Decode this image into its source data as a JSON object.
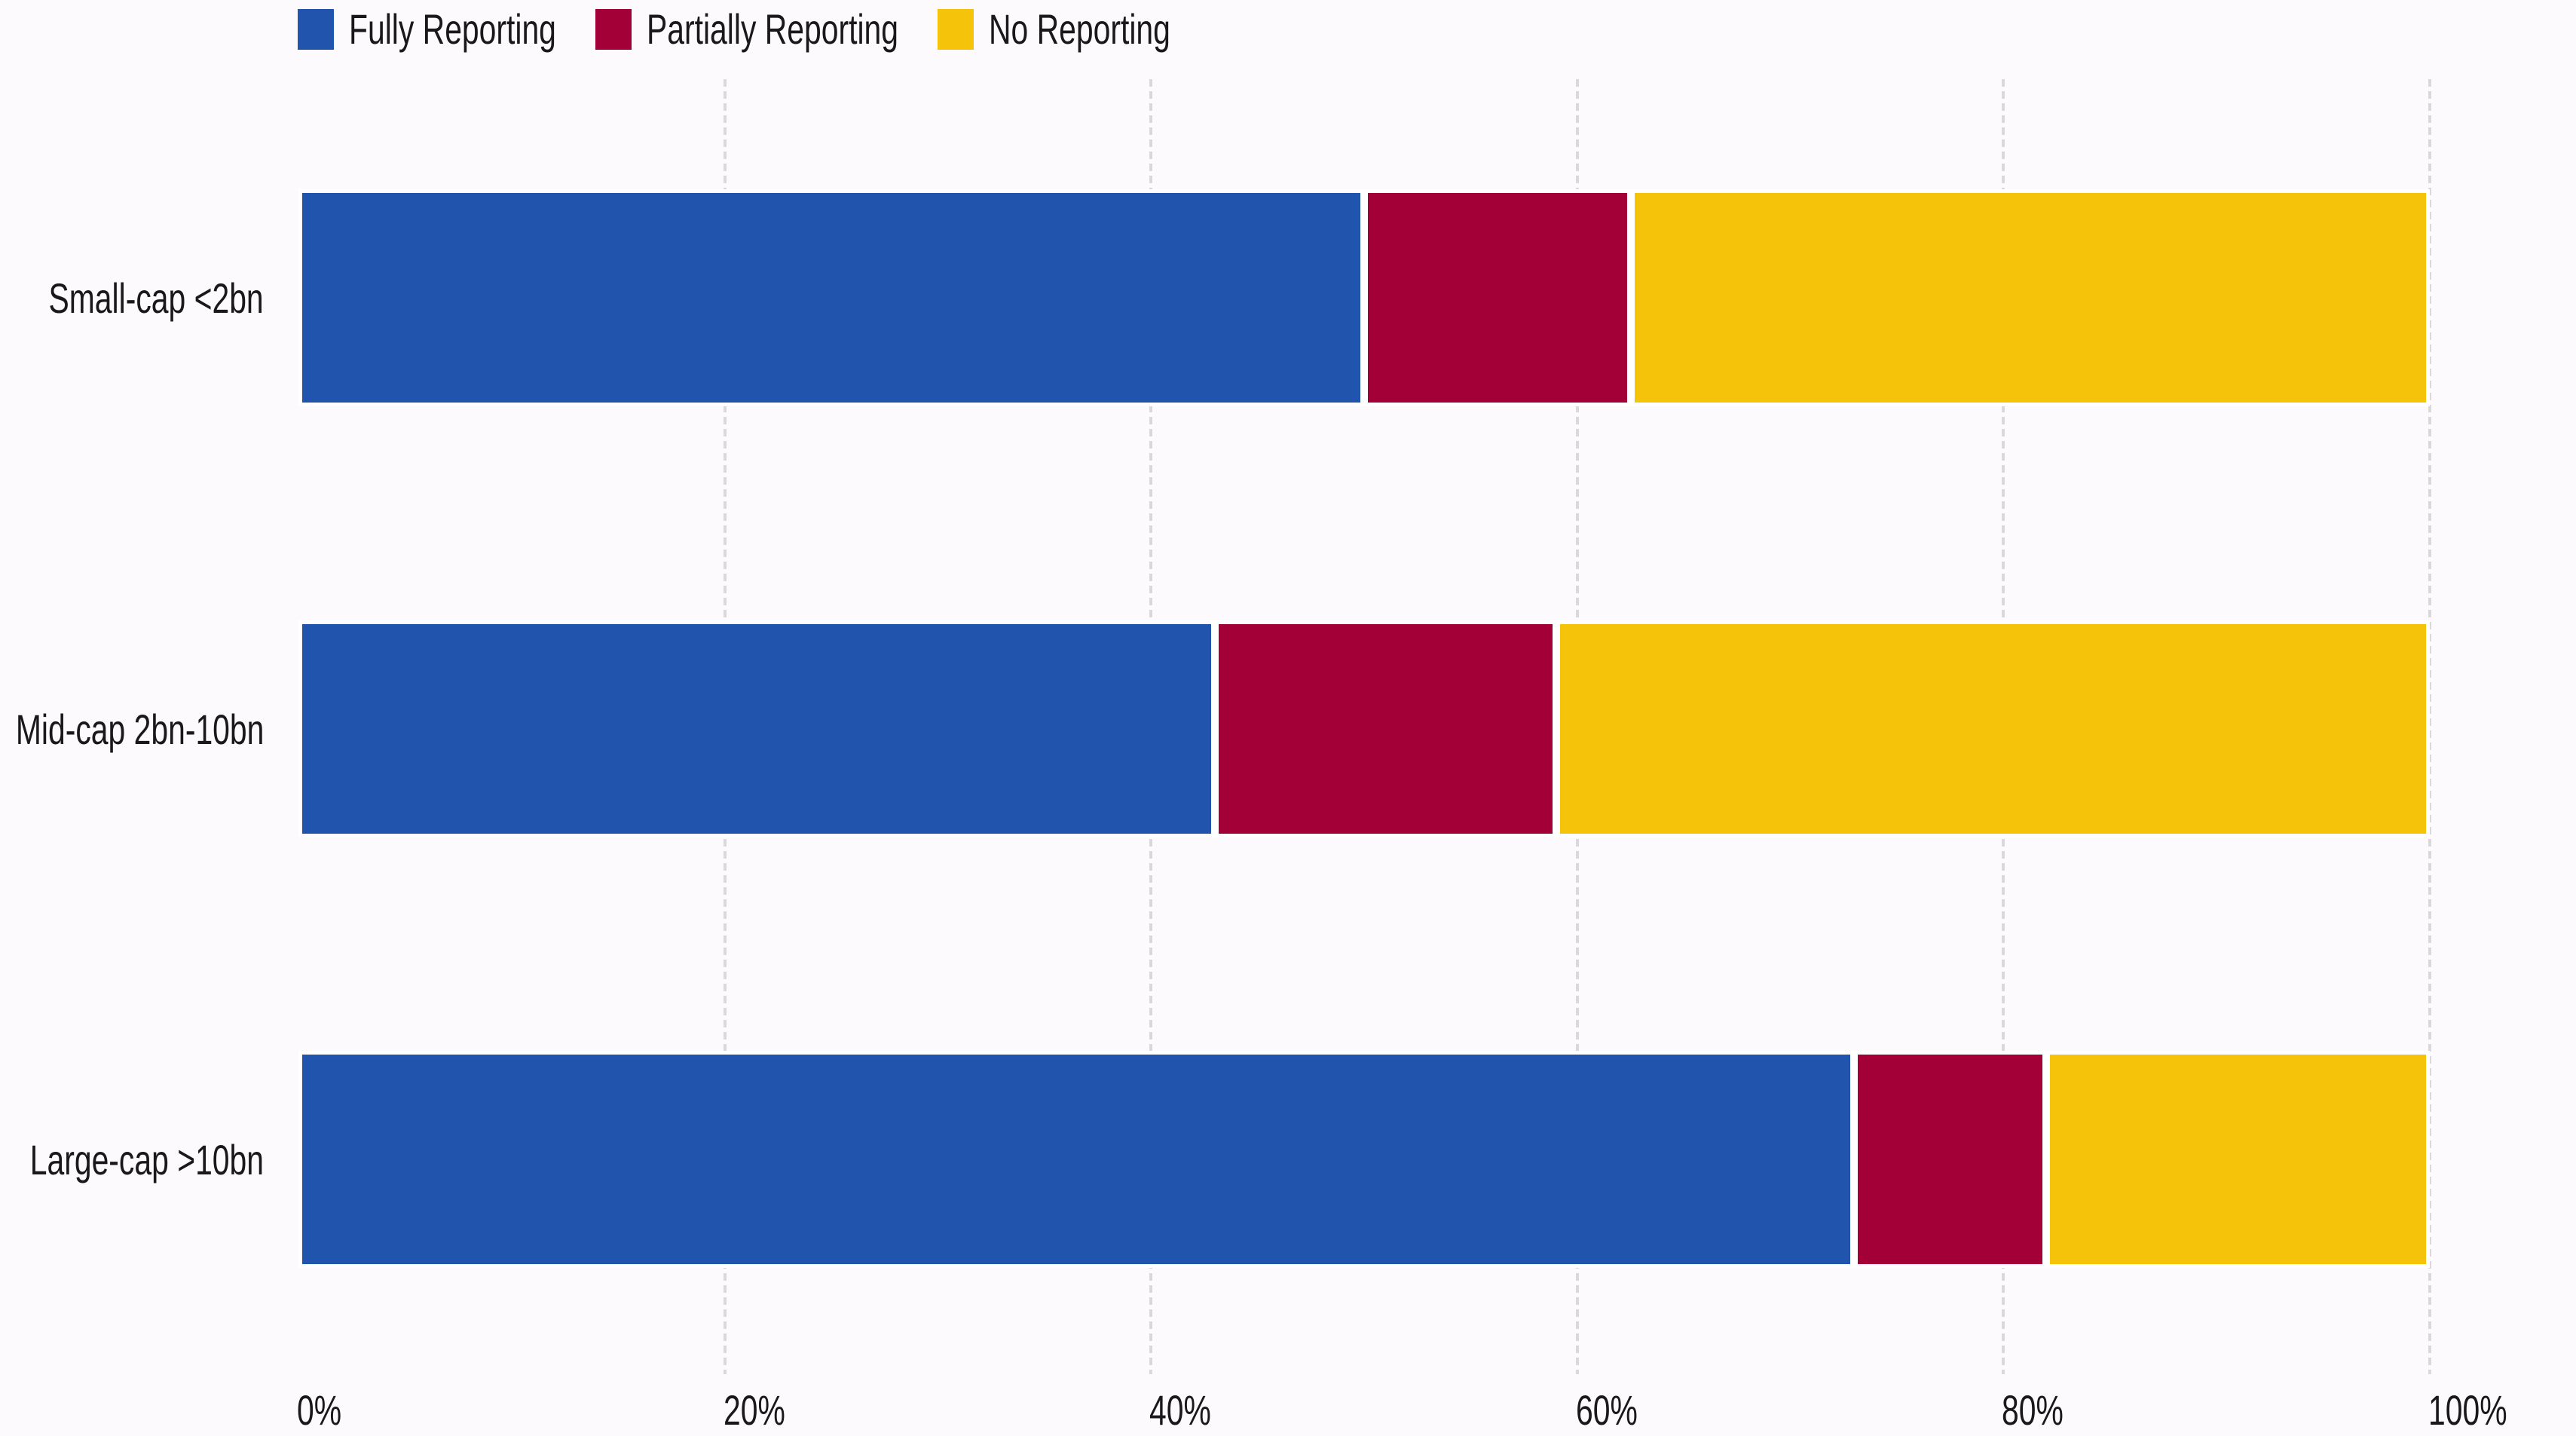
{
  "page": {
    "background_color": "#fcfafc",
    "text_color": "#191919",
    "segment_stroke_color": "#ffffff",
    "gridline_color": "#dbd8db"
  },
  "legend": {
    "items": [
      {
        "label": "Fully Reporting",
        "color": "#2154ad",
        "swatch": "blue-square-icon"
      },
      {
        "label": "Partially Reporting",
        "color": "#a30038",
        "swatch": "crimson-square-icon"
      },
      {
        "label": "No Reporting",
        "color": "#f5c30a",
        "swatch": "yellow-square-icon"
      }
    ]
  },
  "chart_data": {
    "type": "bar",
    "orientation": "horizontal",
    "stacked": true,
    "unit": "%",
    "title": "",
    "xlabel": "",
    "ylabel": "",
    "categories": [
      "Small-cap <2bn",
      "Mid-cap 2bn-10bn",
      "Large-cap >10bn"
    ],
    "series": [
      {
        "name": "Fully Reporting",
        "color": "#2154ad",
        "values": [
          50,
          43,
          73
        ]
      },
      {
        "name": "Partially Reporting",
        "color": "#a30038",
        "values": [
          12.5,
          16,
          9
        ]
      },
      {
        "name": "No Reporting",
        "color": "#f5c30a",
        "values": [
          37.5,
          41,
          18
        ]
      }
    ],
    "xlim": [
      0,
      100
    ],
    "x_ticks": [
      {
        "value": 0,
        "label": "0%"
      },
      {
        "value": 20,
        "label": "20%"
      },
      {
        "value": 40,
        "label": "40%"
      },
      {
        "value": 60,
        "label": "60%"
      },
      {
        "value": 80,
        "label": "80%"
      },
      {
        "value": 100,
        "label": "100%"
      }
    ],
    "grid": "vertical-dashed",
    "gridline_at_zero": false,
    "legend_position": "top-left"
  }
}
